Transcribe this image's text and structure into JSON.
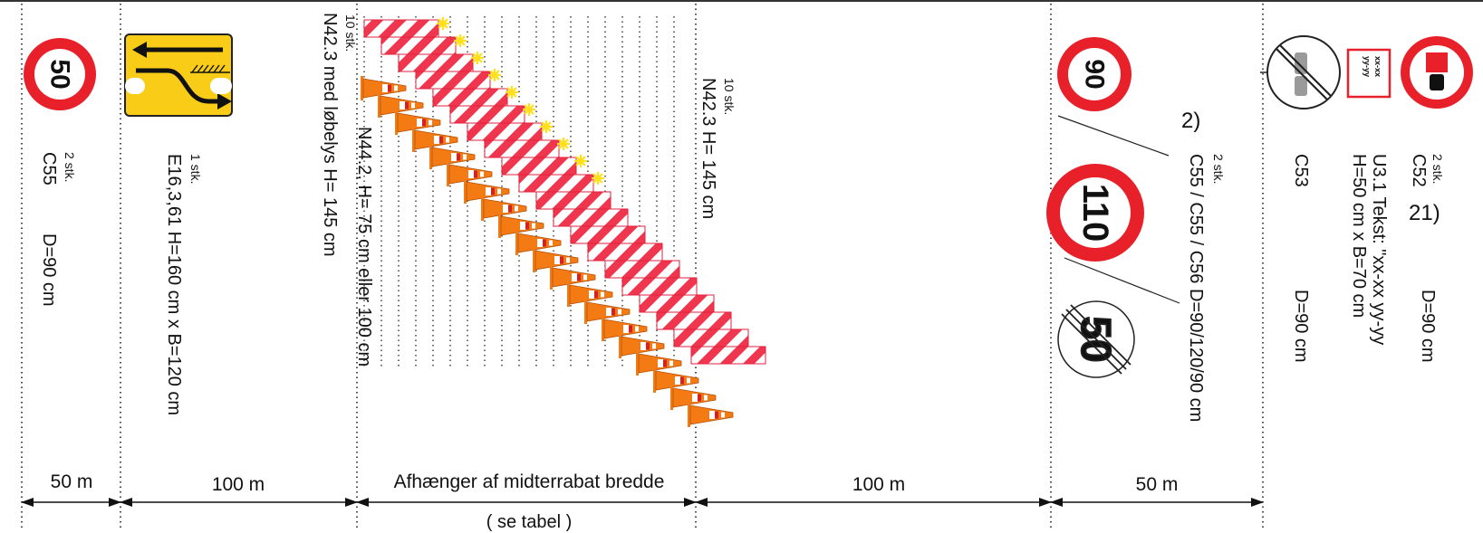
{
  "segments": [
    {
      "label": "50 m"
    },
    {
      "label": "100 m"
    },
    {
      "label": "Afhænger af midterrabat bredde",
      "sublabel": "( se tabel )"
    },
    {
      "label": "100 m"
    },
    {
      "label": "50 m"
    }
  ],
  "sign_c55_50": {
    "value": "50",
    "count": "2 stk.",
    "code": "C55",
    "diameter": "D=90 cm"
  },
  "sign_e16": {
    "count": "1 stk.",
    "spec": "E16,3,61 H=160 cm x B=120 cm"
  },
  "barriers_first": {
    "count": "10 stk.",
    "spec": "N42.3 med løbelys   H= 145 cm"
  },
  "cones": {
    "spec": "N44.2, H= 75 cm eller 100 cm"
  },
  "barriers_second": {
    "count": "10 stk.",
    "spec": "N42.3   H= 145 cm"
  },
  "sign_group_speed": {
    "values": [
      "90",
      "110",
      "50"
    ],
    "note": "2)",
    "count": "2 stk.",
    "codes": "C55 / C55 / C56  D=90/120/90 cm"
  },
  "sign_c53": {
    "code": "C53",
    "diameter": "D=90 cm"
  },
  "sign_u31": {
    "code": "U3.1  Tekst: \"xx-xx  yy-yy",
    "size": "H=50 cm x B=70 cm",
    "plate_line1": "xx-xx",
    "plate_line2": "yy-yy"
  },
  "sign_c52": {
    "count": "2 stk.",
    "code": "C52",
    "note": "21)",
    "diameter": "D=90 cm"
  },
  "colors": {
    "sign_red": "#e8202a",
    "barrier_red": "#f0364e",
    "cone_orange": "#f47a14",
    "lamp_yellow": "#ffe01a",
    "e16_yellow": "#f8cc17"
  }
}
